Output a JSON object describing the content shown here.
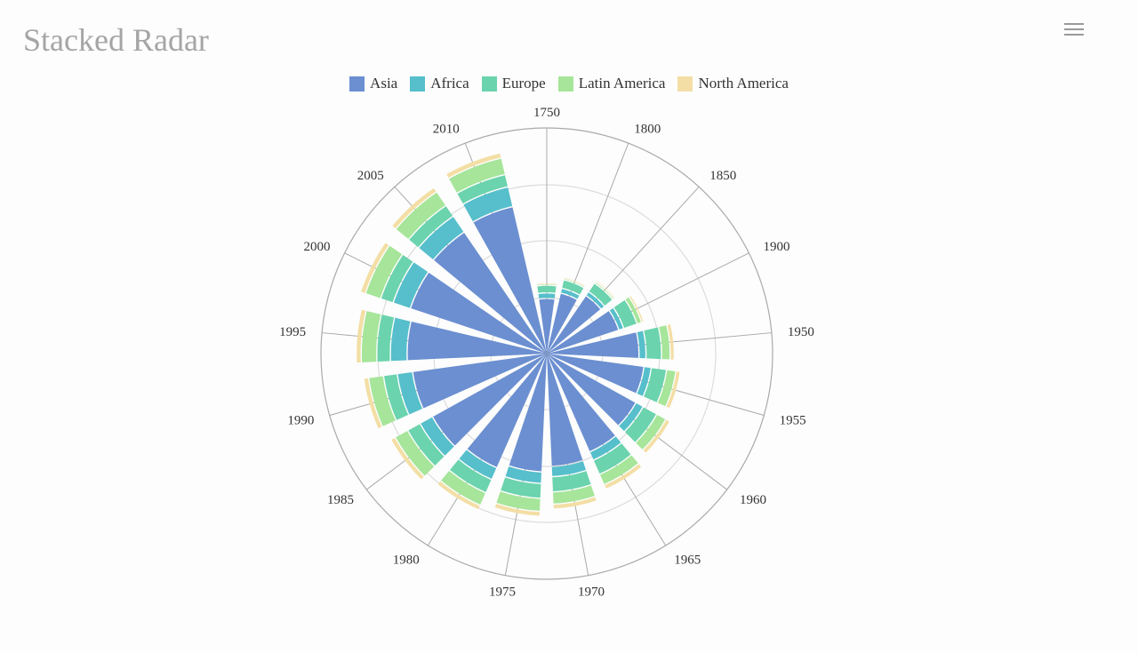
{
  "page": {
    "title": "Stacked Radar"
  },
  "toolbar": {
    "menu_icon": "hamburger-menu-icon"
  },
  "chart_data": {
    "type": "bar",
    "polar": true,
    "stacked": true,
    "categories": [
      "1750",
      "1800",
      "1850",
      "1900",
      "1950",
      "1955",
      "1960",
      "1965",
      "1970",
      "1975",
      "1980",
      "1985",
      "1990",
      "1995",
      "2000",
      "2005",
      "2010"
    ],
    "series": [
      {
        "name": "Asia",
        "color": "#6b8fd0",
        "values": [
          502,
          635,
          809,
          947,
          1402,
          1586,
          1707,
          1898,
          2103,
          2314,
          2564,
          2814,
          3025,
          3214,
          3407,
          3565,
          3758
        ]
      },
      {
        "name": "Africa",
        "color": "#56bfcb",
        "values": [
          106,
          107,
          111,
          133,
          221,
          247,
          290,
          334,
          404,
          474,
          552,
          640,
          730,
          818,
          909,
          994,
          1080
        ]
      },
      {
        "name": "Europe",
        "color": "#6bd3ad",
        "values": [
          163,
          203,
          276,
          408,
          547,
          576,
          605,
          634,
          656,
          676,
          692,
          708,
          721,
          728,
          731,
          734,
          738
        ]
      },
      {
        "name": "Latin America",
        "color": "#a6e59a",
        "values": [
          18,
          31,
          54,
          156,
          339,
          391,
          450,
          515,
          586,
          653,
          722,
          787,
          853,
          915,
          971,
          1023,
          1075
        ]
      },
      {
        "name": "North America",
        "color": "#f3dea5",
        "values": [
          2,
          7,
          26,
          82,
          172,
          192,
          214,
          232,
          248,
          262,
          276,
          290,
          304,
          320,
          335,
          347,
          360
        ]
      }
    ],
    "legend_position": "top"
  }
}
